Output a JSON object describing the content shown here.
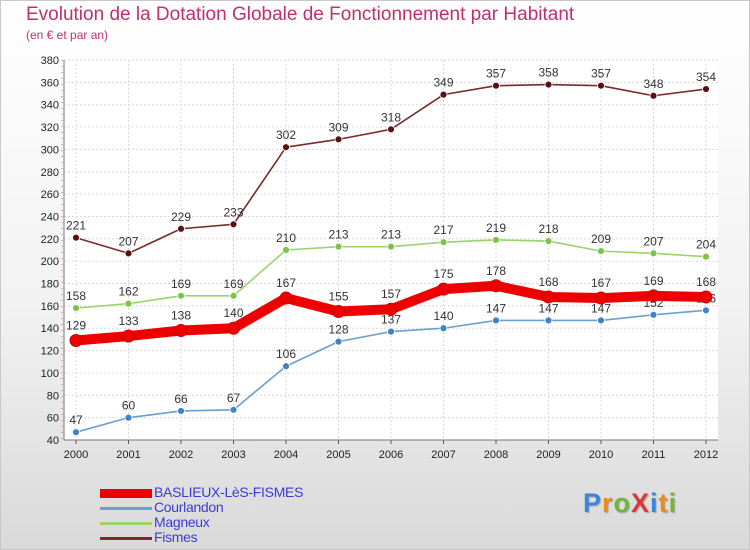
{
  "title": "Evolution de la Dotation Globale de Fonctionnement par Habitant",
  "subtitle": "(en € et par an)",
  "logo": {
    "text": "ProXiti",
    "colors": [
      "#3a86d8",
      "#e98a1d",
      "#6fb637",
      "#d83a3a",
      "#3a86d8",
      "#e98a1d",
      "#6fb637"
    ]
  },
  "chart_data": {
    "type": "line",
    "x": [
      "2000",
      "2001",
      "2002",
      "2003",
      "2004",
      "2005",
      "2006",
      "2007",
      "2008",
      "2009",
      "2010",
      "2011",
      "2012"
    ],
    "ylim": [
      40,
      380
    ],
    "yticks": [
      40,
      60,
      80,
      100,
      120,
      140,
      160,
      180,
      200,
      220,
      240,
      260,
      280,
      300,
      320,
      340,
      360,
      380
    ],
    "grid": true,
    "legend_position": "bottom-left",
    "series": [
      {
        "name": "Fismes",
        "color": "#7b2a2a",
        "marker": "#5a1010",
        "values": [
          221,
          207,
          229,
          233,
          302,
          309,
          318,
          349,
          357,
          358,
          357,
          348,
          354
        ],
        "labels": [
          "221",
          "207",
          "229",
          "233",
          "302",
          "309",
          "318",
          "349",
          "357",
          "358",
          "357",
          "348",
          "354"
        ]
      },
      {
        "name": "Magneux",
        "color": "#9ad46b",
        "marker": "#7cc34a",
        "values": [
          158,
          162,
          169,
          169,
          210,
          213,
          213,
          217,
          219,
          218,
          209,
          207,
          204
        ],
        "labels": [
          "158",
          "162",
          "169",
          "169",
          "210",
          "213",
          "213",
          "217",
          "219",
          "218",
          "209",
          "207",
          "204"
        ]
      },
      {
        "name": "Courlandon",
        "color": "#6b9fd0",
        "marker": "#3f83c6",
        "values": [
          47,
          60,
          66,
          67,
          106,
          128,
          137,
          140,
          147,
          147,
          147,
          152,
          156
        ],
        "labels": [
          "47",
          "60",
          "66",
          "67",
          "106",
          "128",
          "137",
          "140",
          "147",
          "147",
          "147",
          "152",
          "156"
        ]
      },
      {
        "name": "BASLIEUX-LèS-FISMES",
        "color": "#ee0000",
        "marker": "#ee0000",
        "values": [
          129,
          133,
          138,
          140,
          167,
          155,
          157,
          175,
          178,
          168,
          167,
          169,
          168
        ],
        "labels": [
          "129",
          "133",
          "138",
          "140",
          "167",
          "155",
          "157",
          "175",
          "178",
          "168",
          "167",
          "169",
          "168"
        ]
      }
    ],
    "legend_order": [
      "BASLIEUX-LèS-FISMES",
      "Courlandon",
      "Magneux",
      "Fismes"
    ]
  }
}
